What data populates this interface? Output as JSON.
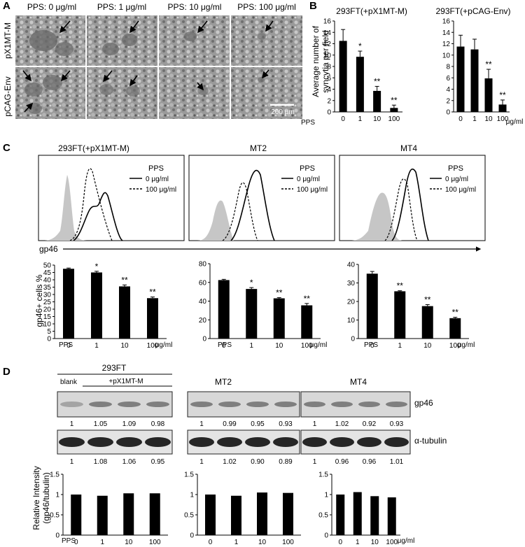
{
  "panel_labels": {
    "a": "A",
    "b": "B",
    "c": "C",
    "d": "D"
  },
  "panelA": {
    "col_headers": [
      "PPS: 0 μg/ml",
      "PPS: 1 μg/ml",
      "PPS: 10 μg/ml",
      "PPS: 100 μg/ml"
    ],
    "row_labels": [
      "pX1MT-M",
      "pCAG-Env"
    ],
    "scale_bar": "200 μm"
  },
  "panelB": {
    "ylabel_line1": "Average number of",
    "ylabel_line2": "syncytia per field",
    "pps_label": "PPS",
    "unit": "μg/ml"
  },
  "panelC": {
    "titles": [
      "293FT(+pX1MT-M)",
      "MT2",
      "MT4"
    ],
    "legend_title": "PPS",
    "legend_items": [
      "0 μg/ml",
      "100 μg/ml"
    ],
    "axis_label": "gp46",
    "bar_ylabel": "gp46+ cells %",
    "pps_label": "PPS",
    "unit": "μg/ml"
  },
  "panelD": {
    "group_titles": [
      "293FT",
      "MT2",
      "MT4"
    ],
    "sub_blank": "blank",
    "sub_plasmid": "+pX1MT-M",
    "band_labels": [
      "gp46",
      "α-tubulin"
    ],
    "gp46_values": [
      [
        "1",
        "1.05",
        "1.09",
        "0.98"
      ],
      [
        "1",
        "0.99",
        "0.95",
        "0.93"
      ],
      [
        "1",
        "1.02",
        "0.92",
        "0.93"
      ]
    ],
    "tubulin_values": [
      [
        "1",
        "1.08",
        "1.06",
        "0.95"
      ],
      [
        "1",
        "1.02",
        "0.90",
        "0.89"
      ],
      [
        "1",
        "0.96",
        "0.96",
        "1.01"
      ]
    ],
    "ylabel_line1": "Relative Intensity",
    "ylabel_line2": "(gp46/tubulin)",
    "pps_label": "PPS",
    "unit": "μg/ml"
  },
  "chart_data": [
    {
      "type": "bar",
      "title": "293FT(+pX1MT-M)",
      "categories": [
        "0",
        "1",
        "10",
        "100"
      ],
      "values": [
        12.5,
        9.7,
        3.7,
        0.7
      ],
      "errors": [
        2.0,
        1.0,
        0.8,
        0.5
      ],
      "significance": [
        "",
        "*",
        "**",
        "**"
      ],
      "ylim": [
        0,
        16
      ],
      "yticks": [
        0,
        2,
        4,
        6,
        8,
        10,
        12,
        14,
        16
      ],
      "ylabel": "Average number of syncytia per field"
    },
    {
      "type": "bar",
      "title": "293FT(+pCAG-Env)",
      "categories": [
        "0",
        "1",
        "10",
        "100"
      ],
      "values": [
        11.5,
        11.0,
        5.9,
        1.3
      ],
      "errors": [
        2.0,
        1.8,
        1.6,
        0.8
      ],
      "significance": [
        "",
        "",
        "**",
        "**"
      ],
      "ylim": [
        0,
        16
      ],
      "yticks": [
        0,
        2,
        4,
        6,
        8,
        10,
        12,
        14,
        16
      ]
    },
    {
      "type": "bar",
      "title": "293FT(+pX1MT-M)",
      "categories": [
        "0",
        "1",
        "10",
        "100"
      ],
      "values": [
        47.5,
        45.0,
        35.5,
        27.5
      ],
      "errors": [
        0.5,
        0.8,
        1.0,
        0.8
      ],
      "significance": [
        "",
        "*",
        "**",
        "**"
      ],
      "ylim": [
        0,
        50
      ],
      "yticks": [
        0,
        5,
        10,
        15,
        20,
        25,
        30,
        35,
        40,
        45,
        50
      ],
      "ylabel": "gp46+ cells %"
    },
    {
      "type": "bar",
      "title": "MT2",
      "categories": [
        "0",
        "1",
        "10",
        "100"
      ],
      "values": [
        62.5,
        53.0,
        43.0,
        35.5
      ],
      "errors": [
        0.8,
        1.5,
        0.8,
        2.0
      ],
      "significance": [
        "",
        "*",
        "**",
        "**"
      ],
      "ylim": [
        0,
        80
      ],
      "yticks": [
        0,
        20,
        40,
        60,
        80
      ]
    },
    {
      "type": "bar",
      "title": "MT4",
      "categories": [
        "0",
        "1",
        "10",
        "100"
      ],
      "values": [
        35.0,
        25.5,
        17.5,
        11.0
      ],
      "errors": [
        1.2,
        0.3,
        0.8,
        0.5
      ],
      "significance": [
        "",
        "**",
        "**",
        "**"
      ],
      "ylim": [
        0,
        40
      ],
      "yticks": [
        0,
        10,
        20,
        30,
        40
      ]
    },
    {
      "type": "bar",
      "title": "293FT",
      "categories": [
        "0",
        "1",
        "10",
        "100"
      ],
      "values": [
        1.0,
        0.97,
        1.03,
        1.03
      ],
      "ylim": [
        0,
        1.5
      ],
      "yticks": [
        0,
        0.5,
        1,
        1.5
      ],
      "ylabel": "Relative Intensity (gp46/tubulin)"
    },
    {
      "type": "bar",
      "title": "MT2",
      "categories": [
        "0",
        "1",
        "10",
        "100"
      ],
      "values": [
        1.0,
        0.97,
        1.05,
        1.04
      ],
      "ylim": [
        0,
        1.5
      ],
      "yticks": [
        0,
        0.5,
        1,
        1.5
      ]
    },
    {
      "type": "bar",
      "title": "MT4",
      "categories": [
        "0",
        "1",
        "10",
        "100"
      ],
      "values": [
        1.0,
        1.06,
        0.96,
        0.93
      ],
      "ylim": [
        0,
        1.5
      ],
      "yticks": [
        0,
        0.5,
        1,
        1.5
      ]
    }
  ]
}
